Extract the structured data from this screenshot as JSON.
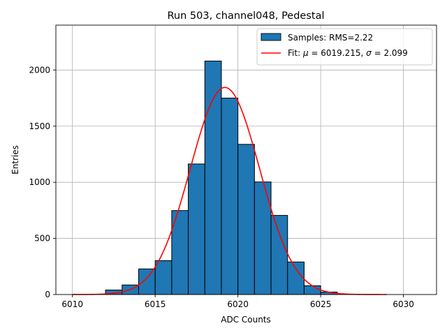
{
  "chart_data": {
    "type": "bar",
    "title": "Run 503, channel048, Pedestal",
    "xlabel": "ADC Counts",
    "ylabel": "Entries",
    "xlim": [
      6009.0,
      6032.0
    ],
    "ylim": [
      0,
      2400
    ],
    "xticks": [
      6010,
      6015,
      6020,
      6025,
      6030
    ],
    "yticks": [
      0,
      500,
      1000,
      1500,
      2000
    ],
    "grid": true,
    "legend_position": "top-right",
    "histogram": {
      "name": "Samples: RMS=2.22",
      "bin_edges": [
        6012,
        6013,
        6014,
        6015,
        6016,
        6017,
        6018,
        6019,
        6020,
        6021,
        6022,
        6023,
        6024,
        6025,
        6026
      ],
      "counts": [
        40,
        85,
        228,
        302,
        748,
        1163,
        2080,
        1750,
        1338,
        1003,
        705,
        290,
        78,
        22
      ],
      "color": "#1f77b4",
      "edge_color": "#000000"
    },
    "fit": {
      "name_prefix": "Fit: ",
      "mu_symbol": "μ",
      "mu_text": " = 6019.215, ",
      "sigma_symbol": "σ",
      "sigma_text": " = 2.099",
      "mu": 6019.215,
      "sigma": 2.099,
      "amplitude": 1845,
      "x_range": [
        6010,
        6029
      ],
      "color": "#ff0000"
    }
  }
}
